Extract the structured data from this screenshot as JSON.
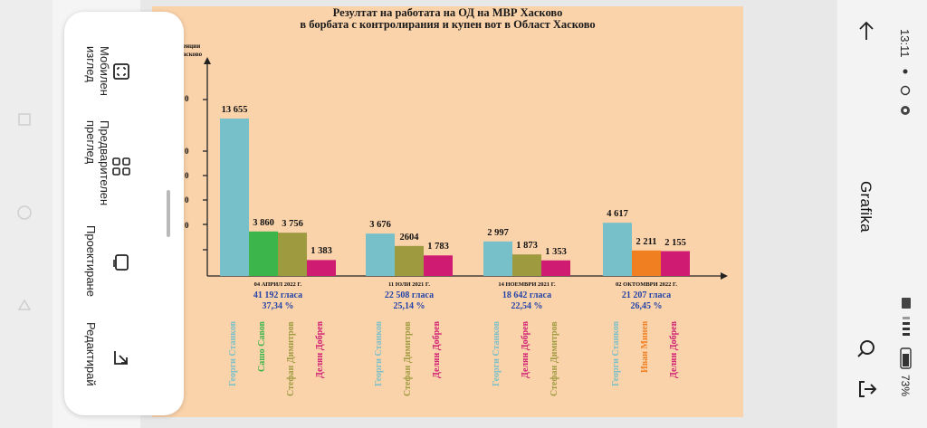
{
  "chart_data": {
    "type": "bar",
    "title_line1": "Резултат на работата на ОД на МВР Хасково",
    "title_line2": "в борбата с контролирания и купен вот в Област Хасково",
    "y_axis_partial_label": [
      "енции",
      "асково"
    ],
    "y_tick_partial_labels": [
      "0",
      "0",
      "0",
      "0",
      "0"
    ],
    "groups": [
      {
        "date": "04 АПРИЛ 2022 Г.",
        "votes": "41 192 гласа",
        "percent": "37,34 %",
        "bars": [
          {
            "name": "Георги Станков",
            "value": 13655,
            "label": "13 655",
            "color": "#78c0c9"
          },
          {
            "name": "Сашо Савов",
            "value": 3860,
            "label": "3 860",
            "color": "#3cb54a"
          },
          {
            "name": "Стефан Димитров",
            "value": 3756,
            "label": "3 756",
            "color": "#9e9a3f"
          },
          {
            "name": "Делян Добрев",
            "value": 1383,
            "label": "1 383",
            "color": "#cf1c72"
          }
        ]
      },
      {
        "date": "11 ЮЛИ 2021 Г.",
        "votes": "22 508 гласа",
        "percent": "25,14 %",
        "bars": [
          {
            "name": "Георги Станков",
            "value": 3676,
            "label": "3 676",
            "color": "#78c0c9"
          },
          {
            "name": "Стефан Димитров",
            "value": 2604,
            "label": "2604",
            "color": "#9e9a3f"
          },
          {
            "name": "Делян Добрев",
            "value": 1783,
            "label": "1 783",
            "color": "#cf1c72"
          }
        ]
      },
      {
        "date": "14 НОЕМВРИ 2021 Г.",
        "votes": "18 642 гласа",
        "percent": "22,54 %",
        "bars": [
          {
            "name": "Георги Станков",
            "value": 2997,
            "label": "2 997",
            "color": "#78c0c9"
          },
          {
            "name": "Делян Добрев",
            "value": 1873,
            "label": "1 873",
            "color": "#9e9a3f"
          },
          {
            "name": "Стефан Димитров",
            "value": 1353,
            "label": "1 353",
            "color": "#cf1c72"
          }
        ]
      },
      {
        "date": "02 ОКТОМВРИ 2022 Г.",
        "votes": "21 207 гласа",
        "percent": "26,45 %",
        "bars": [
          {
            "name": "Георги Станков",
            "value": 4617,
            "label": "4 617",
            "color": "#78c0c9"
          },
          {
            "name": "Иван Минев",
            "value": 2211,
            "label": "2 211",
            "color": "#f07f22"
          },
          {
            "name": "Делян Добрев",
            "value": 2155,
            "label": "2 155",
            "color": "#cf1c72"
          }
        ]
      }
    ],
    "name_colors": {
      "Георги Станков": "#78c0c9",
      "Сашо Савов": "#3cb54a",
      "Стефан Димитров": "#9e9a3f",
      "Делян Добрев": "#cf1c72",
      "Иван Минев": "#f07f22"
    }
  },
  "popup": {
    "items": [
      {
        "label": "Мобилен\nизглед",
        "icon": "fullscreen-icon"
      },
      {
        "label": "Предварителен\nпреглед",
        "icon": "grid-icon"
      },
      {
        "label": "Проектиране",
        "icon": "rotate-screen-icon"
      },
      {
        "label": "Редактирай",
        "icon": "edit-icon"
      }
    ]
  },
  "app_title": "Grafika",
  "status": {
    "time": "13:11",
    "battery": "73%"
  },
  "colors": {
    "chart_bg": "#fbd3ab",
    "popup_bg": "#ffffff",
    "votes_text": "#2444a8"
  }
}
